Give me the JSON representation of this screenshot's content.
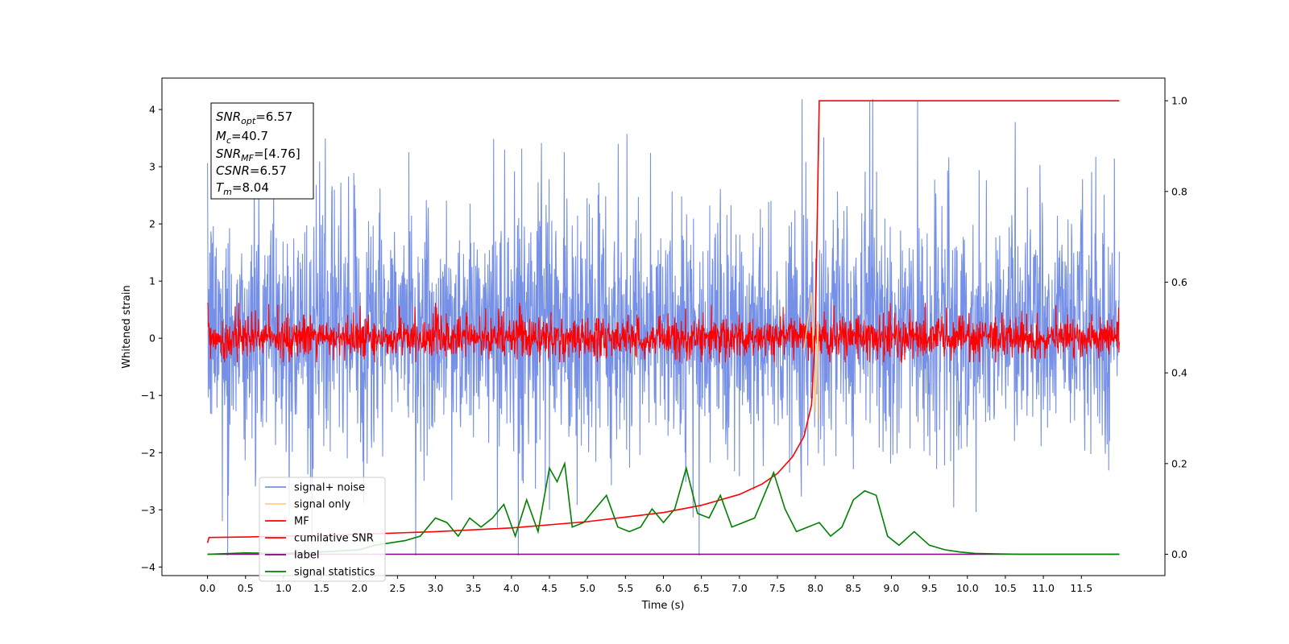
{
  "chart_data": {
    "type": "line",
    "xlabel": "Time (s)",
    "ylabel": "Whitened strain",
    "xlim": [
      -0.6,
      12.6
    ],
    "ylim": [
      -4.15,
      4.55
    ],
    "y2lim": [
      -0.047,
      1.05
    ],
    "xticks": [
      0.0,
      0.5,
      1.0,
      1.5,
      2.0,
      2.5,
      3.0,
      3.5,
      4.0,
      4.5,
      5.0,
      5.5,
      6.0,
      6.5,
      7.0,
      7.5,
      8.0,
      8.5,
      9.0,
      9.5,
      10.0,
      10.5,
      11.0,
      11.5
    ],
    "xtick_labels": [
      "0.0",
      "0.5",
      "1.0",
      "1.5",
      "2.0",
      "2.5",
      "3.0",
      "3.5",
      "4.0",
      "4.5",
      "5.0",
      "5.5",
      "6.0",
      "6.5",
      "7.0",
      "7.5",
      "8.0",
      "8.5",
      "9.0",
      "9.5",
      "10.0",
      "10.5",
      "11.0",
      "11.5"
    ],
    "yticks": [
      4,
      3,
      2,
      1,
      0,
      -1,
      -2,
      -3,
      -4
    ],
    "ytick_labels": [
      "4",
      "3",
      "2",
      "1",
      "0",
      "−1",
      "−2",
      "−3",
      "−4"
    ],
    "y2ticks": [
      1.0,
      0.8,
      0.6,
      0.4,
      0.2,
      0.0
    ],
    "y2tick_labels": [
      "1.0",
      "0.8",
      "0.6",
      "0.4",
      "0.2",
      "0.0"
    ],
    "info_box": {
      "snr_opt": {
        "main": "SNR",
        "sub": "opt",
        "value": "=6.57"
      },
      "mc": {
        "main": "M",
        "sub": "c",
        "value": "=40.7"
      },
      "snr_mf": {
        "main": "SNR",
        "sub": "MF",
        "value": "=[4.76]"
      },
      "csnr": {
        "main": "CSNR",
        "value": "=6.57"
      },
      "tm": {
        "main": "T",
        "sub": "m",
        "value": "=8.04"
      }
    },
    "legend": {
      "position": "lower-left",
      "entries": [
        {
          "label": "signal+ noise",
          "color": "#7590e6"
        },
        {
          "label": "signal only",
          "color": "#ffcc88"
        },
        {
          "label": "MF",
          "color": "#ff0000"
        },
        {
          "label": "cumilative SNR",
          "color": "#ff0000"
        },
        {
          "label": "label",
          "color": "#800080"
        },
        {
          "label": "signal statistics",
          "color": "#008000"
        }
      ]
    },
    "series": [
      {
        "name": "signal+ noise",
        "axis": "left",
        "color": "#7590e6",
        "description_points": {
          "x_range": [
            0.0,
            12.0
          ],
          "envelope_upper": [
            2.3,
            3.3
          ],
          "envelope_lower": [
            -2.6,
            -1.8
          ],
          "peak_max": 4.18,
          "peak_min": -3.8
        }
      },
      {
        "name": "signal only",
        "axis": "left",
        "color": "#ffcc88",
        "points": {
          "x": [
            7.85,
            7.95,
            8.0,
            8.03,
            8.05
          ],
          "y": [
            -0.2,
            0.8,
            -1.3,
            0.3,
            -1.4
          ]
        }
      },
      {
        "name": "MF",
        "axis": "left",
        "color": "#ff0000",
        "description_points": {
          "x_range": [
            0.0,
            12.0
          ],
          "envelope_upper": [
            0.3,
            0.6
          ],
          "envelope_lower": [
            -0.35,
            -0.2
          ],
          "start_spike": 1.0
        }
      },
      {
        "name": "cumilative SNR",
        "axis": "right",
        "color": "#ff0000",
        "points": {
          "x": [
            0.0,
            0.02,
            0.5,
            1.0,
            2.0,
            3.0,
            4.0,
            5.0,
            6.0,
            6.5,
            7.0,
            7.3,
            7.5,
            7.7,
            7.85,
            7.95,
            8.0,
            8.03,
            8.05,
            8.1,
            9.0,
            10.0,
            11.0,
            12.0
          ],
          "y": [
            0.025,
            0.037,
            0.038,
            0.04,
            0.044,
            0.05,
            0.058,
            0.072,
            0.092,
            0.108,
            0.132,
            0.155,
            0.178,
            0.215,
            0.26,
            0.33,
            0.5,
            0.8,
            1.0,
            1.0,
            1.0,
            1.0,
            1.0,
            1.0
          ]
        }
      },
      {
        "name": "label",
        "axis": "right",
        "color": "#800080",
        "points": {
          "x": [
            0.0,
            12.0
          ],
          "y": [
            0.0,
            0.0
          ]
        }
      },
      {
        "name": "signal statistics",
        "axis": "right",
        "color": "#008000",
        "points": {
          "x": [
            0.0,
            0.5,
            1.0,
            1.5,
            2.0,
            2.2,
            2.4,
            2.6,
            2.8,
            3.0,
            3.15,
            3.3,
            3.45,
            3.6,
            3.75,
            3.9,
            4.05,
            4.2,
            4.35,
            4.5,
            4.6,
            4.7,
            4.8,
            4.95,
            5.1,
            5.25,
            5.4,
            5.55,
            5.7,
            5.85,
            6.0,
            6.15,
            6.3,
            6.45,
            6.6,
            6.75,
            6.9,
            7.05,
            7.2,
            7.35,
            7.45,
            7.6,
            7.75,
            7.9,
            8.05,
            8.2,
            8.35,
            8.5,
            8.65,
            8.8,
            8.95,
            9.1,
            9.3,
            9.5,
            9.7,
            9.9,
            10.1,
            10.4,
            10.7,
            11.0,
            12.0
          ],
          "y": [
            0.0,
            0.003,
            0.002,
            0.005,
            0.01,
            0.02,
            0.025,
            0.03,
            0.04,
            0.08,
            0.07,
            0.04,
            0.08,
            0.06,
            0.08,
            0.11,
            0.04,
            0.12,
            0.05,
            0.19,
            0.16,
            0.2,
            0.06,
            0.07,
            0.1,
            0.13,
            0.06,
            0.05,
            0.06,
            0.1,
            0.07,
            0.1,
            0.19,
            0.09,
            0.08,
            0.13,
            0.06,
            0.07,
            0.08,
            0.14,
            0.18,
            0.1,
            0.05,
            0.06,
            0.07,
            0.04,
            0.06,
            0.12,
            0.14,
            0.13,
            0.04,
            0.02,
            0.05,
            0.02,
            0.01,
            0.005,
            0.002,
            0.001,
            0.0,
            0.0,
            0.0
          ]
        }
      }
    ]
  }
}
